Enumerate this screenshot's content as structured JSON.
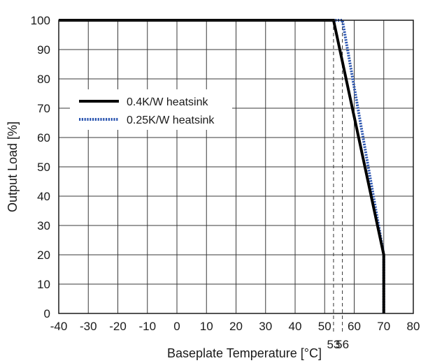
{
  "chart_data": {
    "type": "line",
    "title": "",
    "xlabel": "Baseplate Temperature [°C]",
    "ylabel": "Output Load [%]",
    "xlim": [
      -40,
      80
    ],
    "ylim": [
      0,
      100
    ],
    "xticks": [
      -40,
      -30,
      -20,
      -10,
      0,
      10,
      20,
      30,
      40,
      50,
      60,
      70,
      80
    ],
    "yticks": [
      0,
      10,
      20,
      30,
      40,
      50,
      60,
      70,
      80,
      90,
      100
    ],
    "grid": true,
    "legend_position": "upper-left",
    "series": [
      {
        "name": "0.4K/W heatsink",
        "style": "solid",
        "color": "#000000",
        "x": [
          -40,
          53,
          70,
          70
        ],
        "y": [
          100,
          100,
          20,
          0
        ]
      },
      {
        "name": "0.25K/W heatsink",
        "style": "dotted",
        "color": "#2b55b0",
        "x": [
          -40,
          56,
          70,
          70
        ],
        "y": [
          100,
          100,
          20,
          0
        ]
      }
    ],
    "annotations": [
      {
        "x": 53,
        "label": "53",
        "style": "dashed-vertical"
      },
      {
        "x": 56,
        "label": "56",
        "style": "dashed-vertical"
      }
    ]
  }
}
